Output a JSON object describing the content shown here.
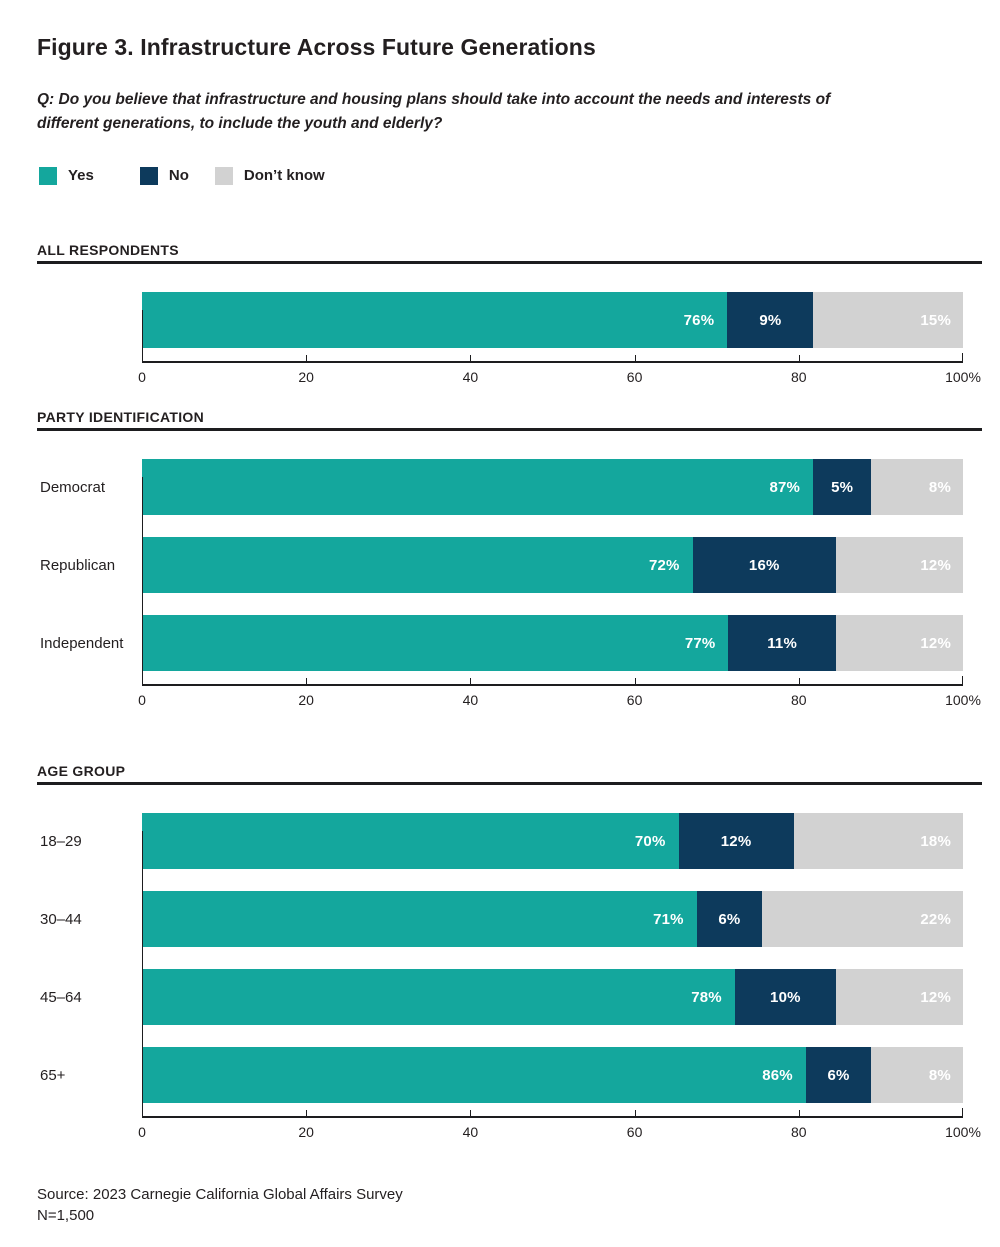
{
  "figure": {
    "title": "Figure 3. Infrastructure Across Future Generations",
    "question": "Q: Do you believe that infrastructure and housing plans should take into account the needs and interests of different generations, to include the youth and elderly?",
    "source_line1": "Source: 2023 Carnegie California Global Affairs Survey",
    "source_line2": "N=1,500"
  },
  "colors": {
    "yes": "#14a79d",
    "no": "#0d3a5c",
    "dont_know": "#d2d2d2",
    "text": "#231f20",
    "axis": "#1d1d1f"
  },
  "legend": [
    {
      "label": "Yes",
      "color": "#14a79d"
    },
    {
      "label": "No",
      "color": "#0d3a5c"
    },
    {
      "label": "Don’t know",
      "color": "#d2d2d2"
    }
  ],
  "axis": {
    "ticks": [
      "0",
      "20",
      "40",
      "60",
      "80",
      "100%"
    ],
    "min": 0,
    "max": 100,
    "grid": false
  },
  "chart_data": [
    {
      "type": "bar",
      "orientation": "horizontal",
      "stacked": true,
      "section": "ALL RESPONDENTS",
      "categories": [
        ""
      ],
      "series": [
        {
          "name": "Yes",
          "color": "#14a79d",
          "values": [
            76
          ]
        },
        {
          "name": "No",
          "color": "#0d3a5c",
          "values": [
            9
          ]
        },
        {
          "name": "Don’t know",
          "color": "#d2d2d2",
          "values": [
            15
          ]
        }
      ],
      "xlim": [
        0,
        100
      ],
      "value_suffix": "%"
    },
    {
      "type": "bar",
      "orientation": "horizontal",
      "stacked": true,
      "section": "PARTY IDENTIFICATION",
      "categories": [
        "Democrat",
        "Republican",
        "Independent"
      ],
      "series": [
        {
          "name": "Yes",
          "color": "#14a79d",
          "values": [
            87,
            72,
            77
          ]
        },
        {
          "name": "No",
          "color": "#0d3a5c",
          "values": [
            5,
            16,
            11
          ]
        },
        {
          "name": "Don’t know",
          "color": "#d2d2d2",
          "values": [
            8,
            12,
            12
          ]
        }
      ],
      "xlim": [
        0,
        100
      ],
      "value_suffix": "%"
    },
    {
      "type": "bar",
      "orientation": "horizontal",
      "stacked": true,
      "section": "AGE GROUP",
      "categories": [
        "18–29",
        "30–44",
        "45–64",
        "65+"
      ],
      "series": [
        {
          "name": "Yes",
          "color": "#14a79d",
          "values": [
            70,
            71,
            78,
            86
          ]
        },
        {
          "name": "No",
          "color": "#0d3a5c",
          "values": [
            12,
            6,
            10,
            6
          ]
        },
        {
          "name": "Don’t know",
          "color": "#d2d2d2",
          "values": [
            18,
            22,
            12,
            8
          ]
        }
      ],
      "xlim": [
        0,
        100
      ],
      "value_suffix": "%"
    }
  ]
}
